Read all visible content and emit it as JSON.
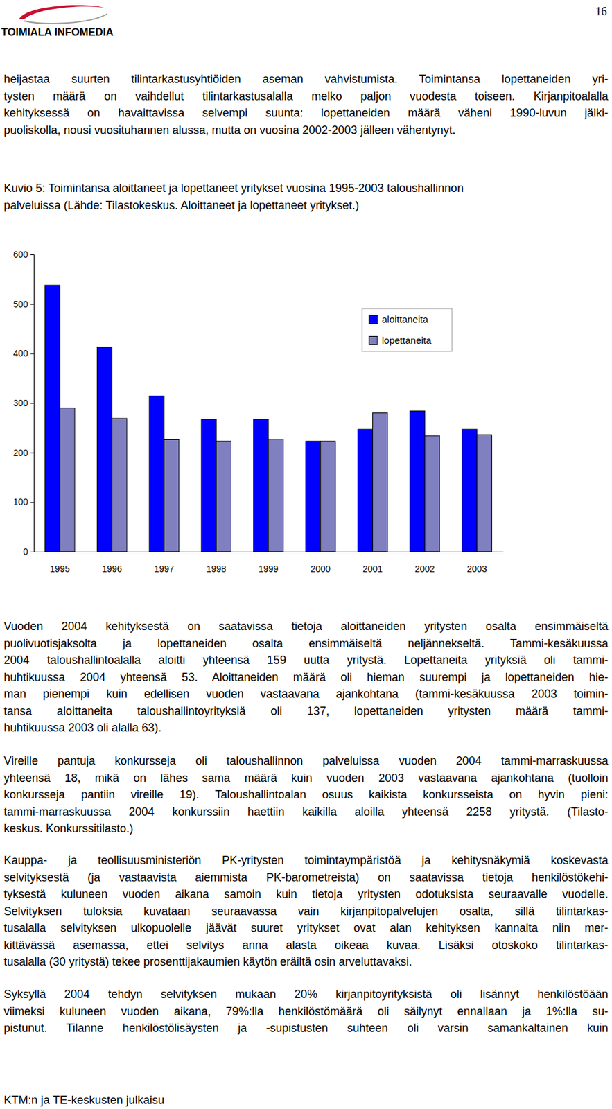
{
  "header": {
    "logo": "TOIMIALA INFOMEDIA",
    "page_number": "16"
  },
  "intro_paragraph": [
    "heijastaa suurten tilintarkastusyhtiöiden aseman vahvistumista. Toimintansa lopettaneiden yri-",
    "tysten määrä on vaihdellut tilintarkastusalalla melko paljon vuodesta toiseen. Kirjanpitoalalla",
    "kehityksessä on havaittavissa selvempi suunta: lopettaneiden määrä väheni 1990-luvun jälki-",
    "puoliskolla, nousi vuosituhannen alussa, mutta on vuosina 2002-2003 jälleen vähentynyt."
  ],
  "figure_caption": [
    "Kuvio 5: Toimintansa aloittaneet ja lopettaneet yritykset vuosina 1995-2003 taloushallinnon",
    "palveluissa (Lähde: Tilastokeskus. Aloittaneet ja lopettaneet yritykset.)"
  ],
  "chart_data": {
    "type": "bar",
    "categories": [
      "1995",
      "1996",
      "1997",
      "1998",
      "1999",
      "2000",
      "2001",
      "2002",
      "2003"
    ],
    "series": [
      {
        "name": "aloittaneita",
        "color": "#0000ff",
        "values": [
          538,
          413,
          314,
          267,
          267,
          223,
          247,
          284,
          247
        ]
      },
      {
        "name": "lopettaneita",
        "color": "#8080c0",
        "values": [
          290,
          269,
          226,
          223,
          227,
          223,
          280,
          234,
          236
        ]
      }
    ],
    "ylim": [
      0,
      600
    ],
    "yticks": [
      0,
      100,
      200,
      300,
      400,
      500,
      600
    ],
    "grid": false,
    "legend": "top-right"
  },
  "paragraphs": [
    [
      "Vuoden 2004 kehityksestä on saatavissa tietoja aloittaneiden yritysten osalta ensimmäiseltä",
      "puolivuotisjaksolta ja lopettaneiden osalta ensimmäiseltä neljännekseltä. Tammi-kesäkuussa",
      "2004 taloushallintoalalla aloitti yhteensä 159 uutta yritystä. Lopettaneita yrityksiä oli tammi-",
      "huhtikuussa 2004 yhteensä 53. Aloittaneiden määrä oli hieman suurempi ja lopettaneiden hie-",
      "man pienempi kuin edellisen vuoden vastaavana ajankohtana (tammi-kesäkuussa 2003 toimin-",
      "tansa aloittaneita taloushallintoyrityksiä oli 137, lopettaneiden yritysten määrä tammi-",
      "huhtikuussa 2003 oli alalla 63)."
    ],
    [
      "Vireille pantuja konkursseja oli taloushallinnon palveluissa vuoden 2004 tammi-marraskuussa",
      "yhteensä 18, mikä on lähes sama määrä kuin vuoden 2003 vastaavana ajankohtana (tuolloin",
      "konkursseja pantiin vireille 19). Taloushallintoalan osuus kaikista konkursseista on hyvin pieni:",
      "tammi-marraskuussa 2004 konkurssiin haettiin kaikilla aloilla yhteensä 2258 yritystä. (Tilasto-",
      "keskus. Konkurssitilasto.)"
    ],
    [
      "Kauppa- ja teollisuusministeriön PK-yritysten toimintaympäristöä ja kehitysnäkymiä koskevasta",
      "selvityksestä (ja vastaavista aiemmista PK-barometreista) on saatavissa tietoja henkilöstökehi-",
      "tyksestä kuluneen vuoden aikana samoin kuin tietoja yritysten odotuksista seuraavalle vuodelle.",
      "Selvityksen tuloksia kuvataan seuraavassa vain kirjanpitopalvelujen osalta, sillä tilintarkas-",
      "tusalalla selvityksen ulkopuolelle jäävät suuret yritykset ovat alan kehityksen kannalta niin mer-",
      "kittävässä asemassa, ettei selvitys anna alasta oikeaa kuvaa. Lisäksi otoskoko tilintarkas-",
      "tusalalla (30 yritystä) tekee prosenttijakaumien käytön eräiltä osin arveluttavaksi."
    ],
    [
      "Syksyllä 2004 tehdyn selvityksen mukaan 20% kirjanpitoyrityksistä oli lisännyt henkilöstöään",
      "viimeksi kuluneen vuoden aikana, 79%:lla henkilöstömäärä oli säilynyt ennallaan ja 1%:lla su-",
      "pistunut. Tilanne henkilöstölisäysten ja -supistusten suhteen oli varsin samankaltainen kuin"
    ]
  ],
  "footer": "KTM:n ja TE-keskusten julkaisu"
}
